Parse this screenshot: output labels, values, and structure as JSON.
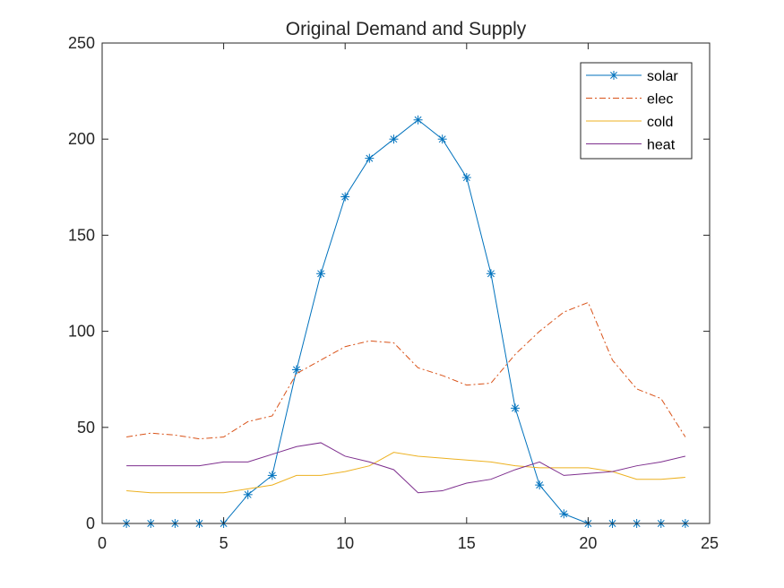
{
  "chart_data": {
    "type": "line",
    "title": "Original Demand and Supply",
    "xlabel": "",
    "ylabel": "",
    "xlim": [
      0,
      25
    ],
    "ylim": [
      0,
      250
    ],
    "xticks": [
      0,
      5,
      10,
      15,
      20,
      25
    ],
    "yticks": [
      0,
      50,
      100,
      150,
      200,
      250
    ],
    "grid": false,
    "legend_position": "top-right",
    "x": [
      1,
      2,
      3,
      4,
      5,
      6,
      7,
      8,
      9,
      10,
      11,
      12,
      13,
      14,
      15,
      16,
      17,
      18,
      19,
      20,
      21,
      22,
      23,
      24
    ],
    "series": [
      {
        "name": "solar",
        "color": "#0072BD",
        "line_style": "solid",
        "marker": "asterisk",
        "values": [
          0,
          0,
          0,
          0,
          0,
          15,
          25,
          80,
          130,
          170,
          190,
          200,
          210,
          200,
          180,
          130,
          60,
          20,
          5,
          0,
          0,
          0,
          0,
          0
        ]
      },
      {
        "name": "elec",
        "color": "#D95319",
        "line_style": "dash-dot",
        "marker": "none",
        "values": [
          45,
          47,
          46,
          44,
          45,
          53,
          56,
          78,
          85,
          92,
          95,
          94,
          81,
          77,
          72,
          73,
          88,
          100,
          110,
          115,
          85,
          70,
          65,
          45
        ]
      },
      {
        "name": "cold",
        "color": "#EDB120",
        "line_style": "solid",
        "marker": "none",
        "values": [
          17,
          16,
          16,
          16,
          16,
          18,
          20,
          25,
          25,
          27,
          30,
          37,
          35,
          34,
          33,
          32,
          30,
          29,
          29,
          29,
          27,
          23,
          23,
          24
        ]
      },
      {
        "name": "heat",
        "color": "#7E2F8E",
        "line_style": "solid",
        "marker": "none",
        "values": [
          30,
          30,
          30,
          30,
          32,
          32,
          36,
          40,
          42,
          35,
          32,
          28,
          16,
          17,
          21,
          23,
          28,
          32,
          25,
          26,
          27,
          30,
          32,
          35
        ]
      }
    ]
  }
}
